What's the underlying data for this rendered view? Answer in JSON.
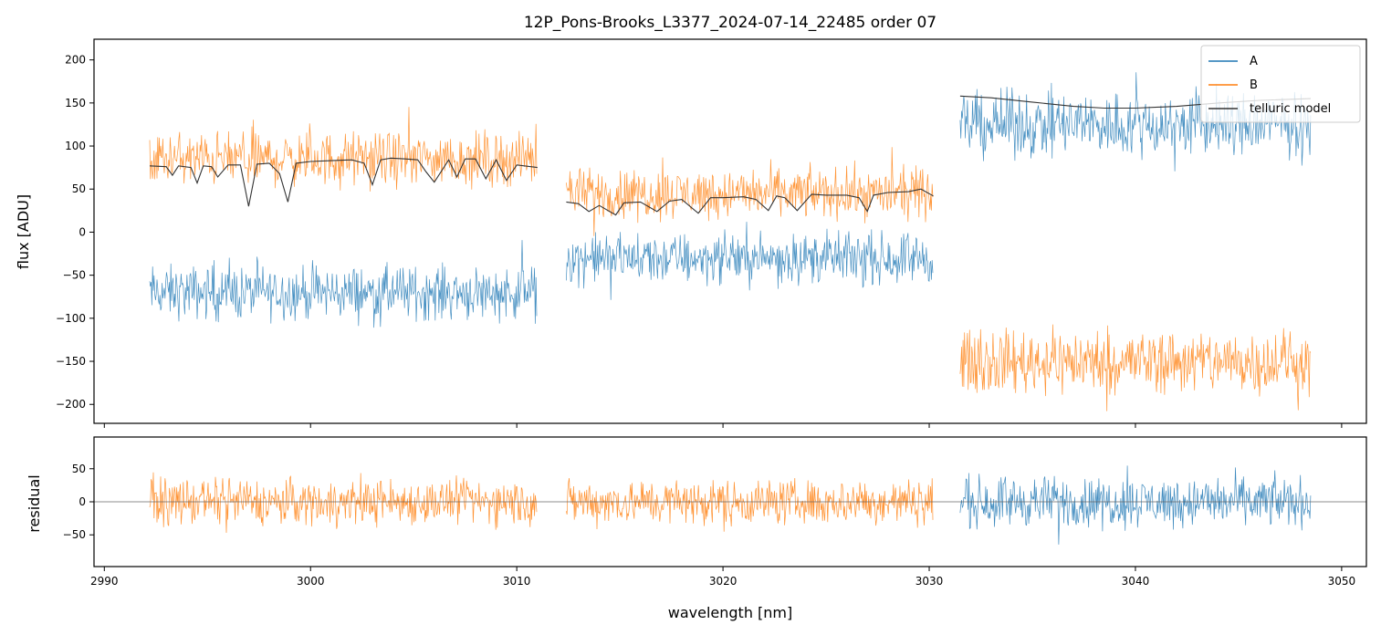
{
  "chart_data": [
    {
      "type": "line",
      "title": "12P_Pons-Brooks_L3377_2024-07-14_22485  order 07",
      "xlabel": "",
      "ylabel": "flux [ADU]",
      "xlim": [
        2989.5,
        3051.2
      ],
      "ylim": [
        -222,
        224
      ],
      "x_ticks": [
        2990,
        3000,
        3010,
        3020,
        3030,
        3040,
        3050
      ],
      "y_ticks": [
        -200,
        -150,
        -100,
        -50,
        0,
        50,
        100,
        150,
        200
      ],
      "y_tick_labels": [
        "−200",
        "−150",
        "−100",
        "−50",
        "0",
        "50",
        "100",
        "150",
        "200"
      ],
      "legend": {
        "position": "top-right",
        "entries": [
          "A",
          "B",
          "telluric model"
        ]
      },
      "segments": [
        {
          "x_range": [
            2992.2,
            3011.0
          ],
          "series": [
            {
              "name": "A",
              "mean": -70,
              "noise_amplitude": 45
            },
            {
              "name": "B",
              "mean": 85,
              "noise_amplitude": 45
            }
          ],
          "telluric_model": {
            "x": [
              2992.2,
              2993.0,
              2993.3,
              2993.6,
              2994.2,
              2994.5,
              2994.8,
              2995.2,
              2995.5,
              2996.0,
              2996.6,
              2997.0,
              2997.4,
              2998.0,
              2998.5,
              2998.9,
              2999.3,
              3000.0,
              3001.0,
              3002.0,
              3002.6,
              3003.0,
              3003.4,
              3003.9,
              3004.6,
              3005.2,
              3005.6,
              3006.0,
              3006.7,
              3007.1,
              3007.5,
              3008.0,
              3008.5,
              3009.0,
              3009.5,
              3010.0,
              3011.0
            ],
            "y": [
              77,
              76,
              66,
              77,
              75,
              57,
              77,
              76,
              64,
              78,
              78,
              30,
              79,
              80,
              68,
              35,
              80,
              82,
              83,
              84,
              80,
              55,
              84,
              86,
              85,
              84,
              70,
              58,
              84,
              64,
              85,
              85,
              62,
              84,
              60,
              78,
              75
            ]
          }
        },
        {
          "x_range": [
            3012.4,
            3030.2
          ],
          "series": [
            {
              "name": "A",
              "mean": -30,
              "noise_amplitude": 42
            },
            {
              "name": "B",
              "mean": 45,
              "noise_amplitude": 42
            }
          ],
          "telluric_model": {
            "x": [
              3012.4,
              3013.0,
              3013.5,
              3014.0,
              3014.8,
              3015.2,
              3016.0,
              3016.8,
              3017.4,
              3018.0,
              3018.8,
              3019.4,
              3020.0,
              3021.0,
              3021.6,
              3022.2,
              3022.6,
              3023.0,
              3023.6,
              3024.3,
              3025.0,
              3026.0,
              3026.6,
              3027.0,
              3027.3,
              3028.0,
              3029.0,
              3029.6,
              3030.2
            ],
            "y": [
              35,
              33,
              24,
              31,
              20,
              34,
              35,
              24,
              36,
              38,
              22,
              40,
              40,
              41,
              38,
              25,
              42,
              40,
              25,
              44,
              43,
              43,
              40,
              24,
              43,
              46,
              47,
              50,
              42
            ]
          }
        },
        {
          "x_range": [
            3031.5,
            3048.5
          ],
          "series": [
            {
              "name": "A",
              "mean": 125,
              "noise_amplitude": 55
            },
            {
              "name": "B",
              "mean": -150,
              "noise_amplitude": 55
            }
          ],
          "telluric_model": {
            "x": [
              3031.5,
              3033.0,
              3035.0,
              3037.0,
              3038.5,
              3040.0,
              3042.0,
              3044.0,
              3046.0,
              3048.5
            ],
            "y": [
              158,
              156,
              151,
              146,
              144,
              144,
              146,
              150,
              153,
              155
            ]
          }
        }
      ]
    },
    {
      "type": "line",
      "title": "",
      "xlabel": "wavelength [nm]",
      "ylabel": "residual",
      "xlim": [
        2989.5,
        3051.2
      ],
      "ylim": [
        -98,
        98
      ],
      "x_ticks": [
        2990,
        3000,
        3010,
        3020,
        3030,
        3040,
        3050
      ],
      "x_tick_labels": [
        "2990",
        "3000",
        "3010",
        "3020",
        "3030",
        "3040",
        "3050"
      ],
      "y_ticks": [
        -50,
        0,
        50
      ],
      "y_tick_labels": [
        "−50",
        "0",
        "50"
      ],
      "zero_line": true,
      "segments": [
        {
          "x_range": [
            2992.2,
            3011.0
          ],
          "series": "B",
          "mean": 0,
          "noise_amplitude": 50
        },
        {
          "x_range": [
            3012.4,
            3030.2
          ],
          "series": "B",
          "mean": 0,
          "noise_amplitude": 50
        },
        {
          "x_range": [
            3031.5,
            3048.5
          ],
          "series": "A",
          "mean": 0,
          "noise_amplitude": 55
        }
      ]
    }
  ],
  "colors": {
    "A": "#1f77b4",
    "B": "#ff7f0e",
    "telluric": "#333333",
    "zero_line": "#666666"
  }
}
